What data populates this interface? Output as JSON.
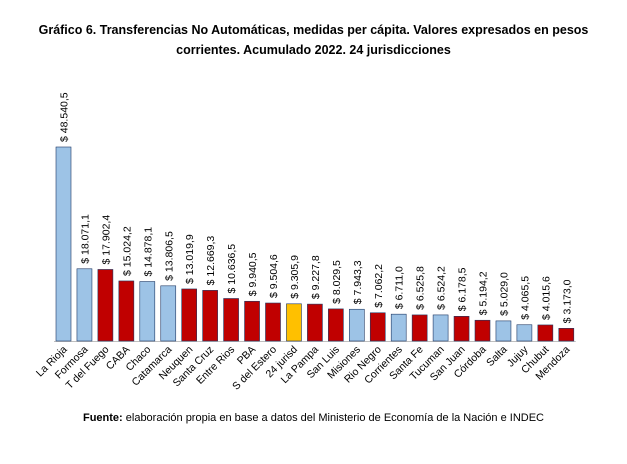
{
  "title_line1": "Gráfico 6. Transferencias No Automáticas, medidas per cápita. Valores expresados en pesos",
  "title_line2": "corrientes. Acumulado 2022. 24 jurisdicciones",
  "source_label": "Fuente:",
  "source_text": " elaboración propia en base a datos del Ministerio de Economía de la Nación e INDEC",
  "colors": {
    "blue": "#9dc3e6",
    "red": "#c00000",
    "gold": "#ffc000",
    "outline": "#1f3864"
  },
  "chart_data": {
    "type": "bar",
    "categories": [
      "La Rioja",
      "Formosa",
      "T del Fuego",
      "CABA",
      "Chaco",
      "Catamarca",
      "Neuquen",
      "Santa Cruz",
      "Entre Rios",
      "PBA",
      "S del Estero",
      "24 jurisd",
      "La Pampa",
      "San Luis",
      "Misiones",
      "Rio Negro",
      "Corrientes",
      "Santa Fe",
      "Tucuman",
      "San Juan",
      "Córdoba",
      "Salta",
      "Jujuy",
      "Chubut",
      "Mendoza"
    ],
    "values": [
      48540.5,
      18071.1,
      17902.4,
      15024.2,
      14878.1,
      13806.5,
      13019.9,
      12669.3,
      10636.5,
      9940.5,
      9504.6,
      9305.9,
      9227.8,
      8029.5,
      7943.3,
      7062.2,
      6711.0,
      6525.8,
      6524.2,
      6178.5,
      5194.2,
      5029.0,
      4065.5,
      4015.6,
      3173.0
    ],
    "labels": [
      "$ 48.540,5",
      "$ 18.071,1",
      "$ 17.902,4",
      "$ 15.024,2",
      "$ 14.878,1",
      "$ 13.806,5",
      "$ 13.019,9",
      "$ 12.669,3",
      "$ 10.636,5",
      "$ 9.940,5",
      "$ 9.504,6",
      "$ 9.305,9",
      "$ 9.227,8",
      "$ 8.029,5",
      "$ 7.943,3",
      "$ 7.062,2",
      "$ 6.711,0",
      "$ 6.525,8",
      "$ 6.524,2",
      "$ 6.178,5",
      "$ 5.194,2",
      "$ 5.029,0",
      "$ 4.065,5",
      "$ 4.015,6",
      "$ 3.173,0"
    ],
    "colors": [
      "blue",
      "blue",
      "red",
      "red",
      "blue",
      "blue",
      "red",
      "red",
      "red",
      "red",
      "red",
      "gold",
      "red",
      "red",
      "blue",
      "red",
      "blue",
      "red",
      "blue",
      "red",
      "red",
      "blue",
      "blue",
      "red",
      "red"
    ],
    "ylim": [
      0,
      48540.5
    ],
    "grid": false,
    "legend": "none"
  }
}
